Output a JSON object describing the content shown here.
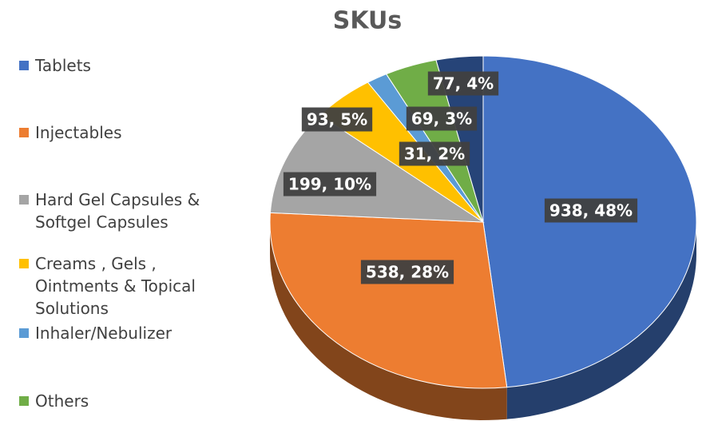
{
  "chart_data": {
    "type": "pie",
    "title": "SKUs",
    "categories": [
      "Tablets",
      "Injectables",
      "Hard Gel Capsules & Softgel Capsules",
      "Creams , Gels , Ointments & Topical Solutions",
      "Inhaler/Nebulizer",
      "Others",
      null
    ],
    "values": [
      938,
      538,
      199,
      93,
      31,
      77,
      69
    ],
    "value_labels": [
      "938, 48%",
      "538, 28%",
      "199, 10%",
      "93, 5%",
      "31, 2%",
      "77, 4%",
      "69, 3%"
    ],
    "colors": [
      "#4472c4",
      "#ed7d31",
      "#a5a5a5",
      "#ffc000",
      "#5b9bd5",
      "#70ad47",
      "#264478"
    ],
    "legend": "left"
  }
}
